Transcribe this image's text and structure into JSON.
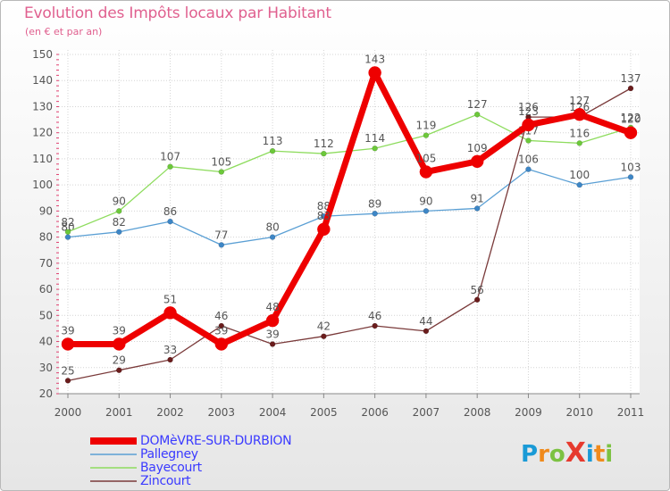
{
  "title": "Evolution des Impôts locaux par Habitant",
  "subtitle": "(en € et par an)",
  "logo": {
    "text": "ProXiti",
    "letters": [
      "P",
      "r",
      "o",
      "X",
      "i",
      "t",
      "i"
    ],
    "colors": [
      "#1a9ad6",
      "#f08a1c",
      "#7cc242",
      "#e63a2e",
      "#1a9ad6",
      "#f08a1c",
      "#7cc242"
    ]
  },
  "chart_data": {
    "type": "line",
    "title": "Evolution des Impôts locaux par Habitant",
    "ylabel": "(en € et par an)",
    "xlabel": "",
    "x": [
      "2000",
      "2001",
      "2002",
      "2003",
      "2004",
      "2005",
      "2006",
      "2007",
      "2008",
      "2009",
      "2010",
      "2011"
    ],
    "yticks": [
      20,
      30,
      40,
      50,
      60,
      70,
      80,
      90,
      100,
      110,
      120,
      130,
      140,
      150
    ],
    "ylim": [
      20,
      150
    ],
    "grid": true,
    "series": [
      {
        "name": "Pallegney",
        "color": "#5a9fd4",
        "dot": "#3d86c6",
        "values": [
          80,
          82,
          86,
          77,
          80,
          88,
          89,
          90,
          91,
          106,
          100,
          103
        ],
        "labels": [
          "80",
          "82",
          "86",
          "77",
          "80",
          "88",
          "89",
          "90",
          "91",
          "106",
          "100",
          "103"
        ]
      },
      {
        "name": "Bayecourt",
        "color": "#8edc5e",
        "dot": "#6cc83a",
        "values": [
          82,
          90,
          107,
          105,
          113,
          112,
          114,
          119,
          127,
          117,
          116,
          122
        ],
        "labels": [
          "82",
          "90",
          "107",
          "105",
          "113",
          "112",
          "114",
          "119",
          "127",
          "117",
          "116",
          "122"
        ]
      },
      {
        "name": "Zincourt",
        "color": "#7a3a3a",
        "dot": "#6a1c1c",
        "values": [
          25,
          29,
          33,
          46,
          39,
          42,
          46,
          44,
          56,
          126,
          126,
          137
        ],
        "labels": [
          "25",
          "29",
          "33",
          "46",
          "39",
          "42",
          "46",
          "44",
          "56",
          "126",
          "126",
          "137"
        ]
      },
      {
        "name": "DOMèVRE-SUR-DURBION",
        "color": "#ee0000",
        "dot": "#ee0000",
        "values": [
          39,
          39,
          51,
          39,
          48,
          83,
          143,
          105,
          109,
          123,
          127,
          120
        ],
        "labels": [
          "39",
          "39",
          "51",
          "39",
          "48",
          "83",
          "143",
          "105",
          "109",
          "123",
          "127",
          "120"
        ]
      }
    ],
    "legend": [
      "DOMèVRE-SUR-DURBION",
      "Pallegney",
      "Bayecourt",
      "Zincourt"
    ]
  }
}
